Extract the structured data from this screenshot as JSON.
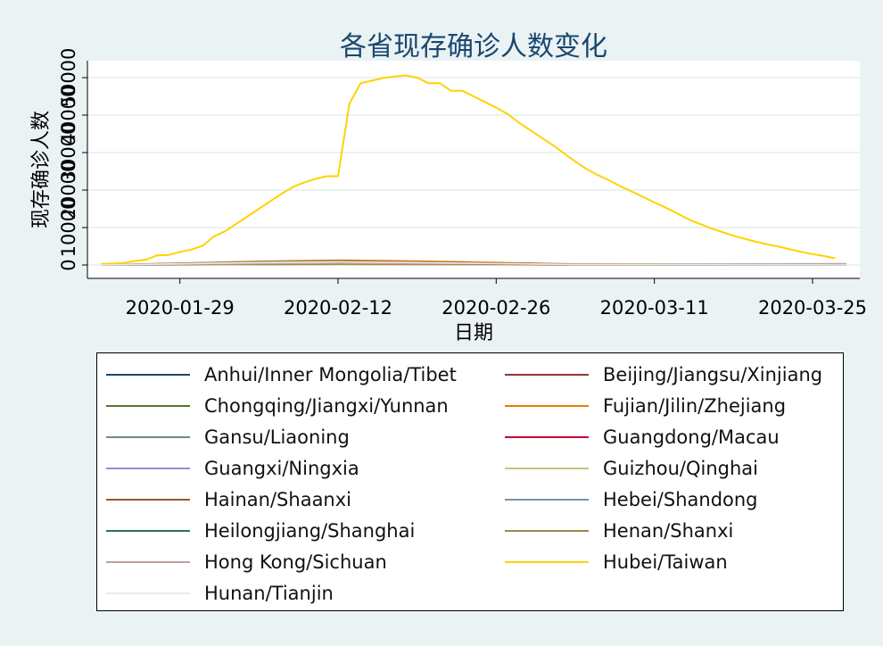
{
  "chart_data": {
    "type": "line",
    "title": "各省现存确诊人数变化",
    "xlabel": "日期",
    "ylabel": "现存确诊人数",
    "x_ticks": [
      "2020-01-29",
      "2020-02-12",
      "2020-02-26",
      "2020-03-11",
      "2020-03-25"
    ],
    "y_ticks": [
      "0",
      "10000",
      "20000",
      "30000",
      "40000",
      "50000"
    ],
    "x_range": [
      "2020-01-22",
      "2020-03-28"
    ],
    "ylim": [
      -3500,
      55000
    ],
    "grid": true,
    "legend_position": "bottom",
    "legend_columns": 2,
    "series": [
      {
        "name": "Anhui/Inner Mongolia/Tibet",
        "color": "#1a476f",
        "points": [
          [
            "2020-01-22",
            0
          ],
          [
            "2020-02-05",
            300
          ],
          [
            "2020-02-12",
            700
          ],
          [
            "2020-02-19",
            500
          ],
          [
            "2020-03-04",
            60
          ],
          [
            "2020-03-28",
            20
          ]
        ]
      },
      {
        "name": "Beijing/Jiangsu/Xinjiang",
        "color": "#90353b",
        "points": [
          [
            "2020-01-22",
            0
          ],
          [
            "2020-02-05",
            350
          ],
          [
            "2020-02-12",
            550
          ],
          [
            "2020-02-19",
            500
          ],
          [
            "2020-03-04",
            250
          ],
          [
            "2020-03-28",
            150
          ]
        ]
      },
      {
        "name": "Chongqing/Jiangxi/Yunnan",
        "color": "#55752f",
        "points": [
          [
            "2020-01-22",
            30
          ],
          [
            "2020-02-05",
            700
          ],
          [
            "2020-02-12",
            1150
          ],
          [
            "2020-02-19",
            900
          ],
          [
            "2020-03-04",
            150
          ],
          [
            "2020-03-28",
            40
          ]
        ]
      },
      {
        "name": "Fujian/Jilin/Zhejiang",
        "color": "#e37e00",
        "points": [
          [
            "2020-01-22",
            20
          ],
          [
            "2020-02-05",
            1000
          ],
          [
            "2020-02-12",
            1300
          ],
          [
            "2020-02-19",
            1050
          ],
          [
            "2020-03-04",
            280
          ],
          [
            "2020-03-28",
            120
          ]
        ]
      },
      {
        "name": "Gansu/Liaoning",
        "color": "#6e8e84",
        "points": [
          [
            "2020-01-22",
            0
          ],
          [
            "2020-02-05",
            100
          ],
          [
            "2020-02-12",
            180
          ],
          [
            "2020-02-19",
            150
          ],
          [
            "2020-03-04",
            40
          ],
          [
            "2020-03-28",
            20
          ]
        ]
      },
      {
        "name": "Guangdong/Macau",
        "color": "#c10534",
        "points": [
          [
            "2020-01-22",
            30
          ],
          [
            "2020-02-05",
            800
          ],
          [
            "2020-02-12",
            1000
          ],
          [
            "2020-02-19",
            750
          ],
          [
            "2020-03-04",
            200
          ],
          [
            "2020-03-28",
            100
          ]
        ]
      },
      {
        "name": "Guangxi/Ningxia",
        "color": "#938dd2",
        "points": [
          [
            "2020-01-22",
            0
          ],
          [
            "2020-02-05",
            180
          ],
          [
            "2020-02-12",
            230
          ],
          [
            "2020-02-19",
            200
          ],
          [
            "2020-03-04",
            60
          ],
          [
            "2020-03-28",
            20
          ]
        ]
      },
      {
        "name": "Guizhou/Qinghai",
        "color": "#cac27e",
        "points": [
          [
            "2020-01-22",
            0
          ],
          [
            "2020-02-05",
            100
          ],
          [
            "2020-02-12",
            150
          ],
          [
            "2020-02-19",
            130
          ],
          [
            "2020-03-04",
            30
          ],
          [
            "2020-03-28",
            10
          ]
        ]
      },
      {
        "name": "Hainan/Shaanxi",
        "color": "#a0522d",
        "points": [
          [
            "2020-01-22",
            0
          ],
          [
            "2020-02-05",
            250
          ],
          [
            "2020-02-12",
            320
          ],
          [
            "2020-02-19",
            280
          ],
          [
            "2020-03-04",
            60
          ],
          [
            "2020-03-28",
            20
          ]
        ]
      },
      {
        "name": "Hebei/Shandong",
        "color": "#7b92a8",
        "points": [
          [
            "2020-01-22",
            0
          ],
          [
            "2020-02-05",
            600
          ],
          [
            "2020-02-12",
            800
          ],
          [
            "2020-02-19",
            700
          ],
          [
            "2020-03-04",
            150
          ],
          [
            "2020-03-28",
            40
          ]
        ]
      },
      {
        "name": "Heilongjiang/Shanghai",
        "color": "#2d6d66",
        "points": [
          [
            "2020-01-22",
            20
          ],
          [
            "2020-02-05",
            450
          ],
          [
            "2020-02-12",
            650
          ],
          [
            "2020-02-19",
            500
          ],
          [
            "2020-03-04",
            150
          ],
          [
            "2020-03-28",
            200
          ]
        ]
      },
      {
        "name": "Henan/Shanxi",
        "color": "#9c8847",
        "points": [
          [
            "2020-01-22",
            0
          ],
          [
            "2020-02-05",
            900
          ],
          [
            "2020-02-12",
            1100
          ],
          [
            "2020-02-19",
            700
          ],
          [
            "2020-03-04",
            100
          ],
          [
            "2020-03-28",
            10
          ]
        ]
      },
      {
        "name": "Hong Kong/Sichuan",
        "color": "#bfa19c",
        "points": [
          [
            "2020-01-22",
            10
          ],
          [
            "2020-02-05",
            350
          ],
          [
            "2020-02-12",
            450
          ],
          [
            "2020-02-19",
            400
          ],
          [
            "2020-03-04",
            200
          ],
          [
            "2020-03-28",
            350
          ]
        ]
      },
      {
        "name": "Hubei/Taiwan",
        "color": "#ffd200",
        "points": [
          [
            "2020-01-22",
            270
          ],
          [
            "2020-01-23",
            375
          ],
          [
            "2020-01-24",
            549
          ],
          [
            "2020-01-25",
            1052
          ],
          [
            "2020-01-26",
            1423
          ],
          [
            "2020-01-27",
            2567
          ],
          [
            "2020-01-28",
            2700
          ],
          [
            "2020-01-29",
            3500
          ],
          [
            "2020-01-30",
            4100
          ],
          [
            "2020-01-31",
            5100
          ],
          [
            "2020-02-01",
            7600
          ],
          [
            "2020-02-02",
            9000
          ],
          [
            "2020-02-03",
            11000
          ],
          [
            "2020-02-04",
            13000
          ],
          [
            "2020-02-05",
            15000
          ],
          [
            "2020-02-06",
            17000
          ],
          [
            "2020-02-07",
            19000
          ],
          [
            "2020-02-08",
            20800
          ],
          [
            "2020-02-09",
            22000
          ],
          [
            "2020-02-10",
            23000
          ],
          [
            "2020-02-11",
            23700
          ],
          [
            "2020-02-12",
            23700
          ],
          [
            "2020-02-13",
            43000
          ],
          [
            "2020-02-14",
            48500
          ],
          [
            "2020-02-15",
            49200
          ],
          [
            "2020-02-16",
            49900
          ],
          [
            "2020-02-17",
            50300
          ],
          [
            "2020-02-18",
            50600
          ],
          [
            "2020-02-19",
            50000
          ],
          [
            "2020-02-20",
            48500
          ],
          [
            "2020-02-21",
            48500
          ],
          [
            "2020-02-22",
            46500
          ],
          [
            "2020-02-23",
            46500
          ],
          [
            "2020-02-24",
            45000
          ],
          [
            "2020-02-25",
            43500
          ],
          [
            "2020-02-26",
            42000
          ],
          [
            "2020-02-27",
            40300
          ],
          [
            "2020-02-28",
            38000
          ],
          [
            "2020-02-29",
            36000
          ],
          [
            "2020-03-01",
            34000
          ],
          [
            "2020-03-02",
            32000
          ],
          [
            "2020-03-03",
            29800
          ],
          [
            "2020-03-04",
            27600
          ],
          [
            "2020-03-05",
            25600
          ],
          [
            "2020-03-06",
            24000
          ],
          [
            "2020-03-07",
            22600
          ],
          [
            "2020-03-08",
            21000
          ],
          [
            "2020-03-09",
            19600
          ],
          [
            "2020-03-10",
            18200
          ],
          [
            "2020-03-11",
            16700
          ],
          [
            "2020-03-12",
            15300
          ],
          [
            "2020-03-13",
            13800
          ],
          [
            "2020-03-14",
            12200
          ],
          [
            "2020-03-15",
            11000
          ],
          [
            "2020-03-16",
            9800
          ],
          [
            "2020-03-17",
            8800
          ],
          [
            "2020-03-18",
            7800
          ],
          [
            "2020-03-19",
            7000
          ],
          [
            "2020-03-20",
            6200
          ],
          [
            "2020-03-21",
            5500
          ],
          [
            "2020-03-22",
            4900
          ],
          [
            "2020-03-23",
            4200
          ],
          [
            "2020-03-24",
            3500
          ],
          [
            "2020-03-25",
            2900
          ],
          [
            "2020-03-26",
            2400
          ],
          [
            "2020-03-27",
            1800
          ]
        ]
      },
      {
        "name": "Hunan/Tianjin",
        "color": "#e1ebf2",
        "points": [
          [
            "2020-01-22",
            0
          ],
          [
            "2020-02-05",
            650
          ],
          [
            "2020-02-12",
            800
          ],
          [
            "2020-02-19",
            650
          ],
          [
            "2020-03-04",
            150
          ],
          [
            "2020-03-28",
            20
          ]
        ]
      }
    ]
  }
}
